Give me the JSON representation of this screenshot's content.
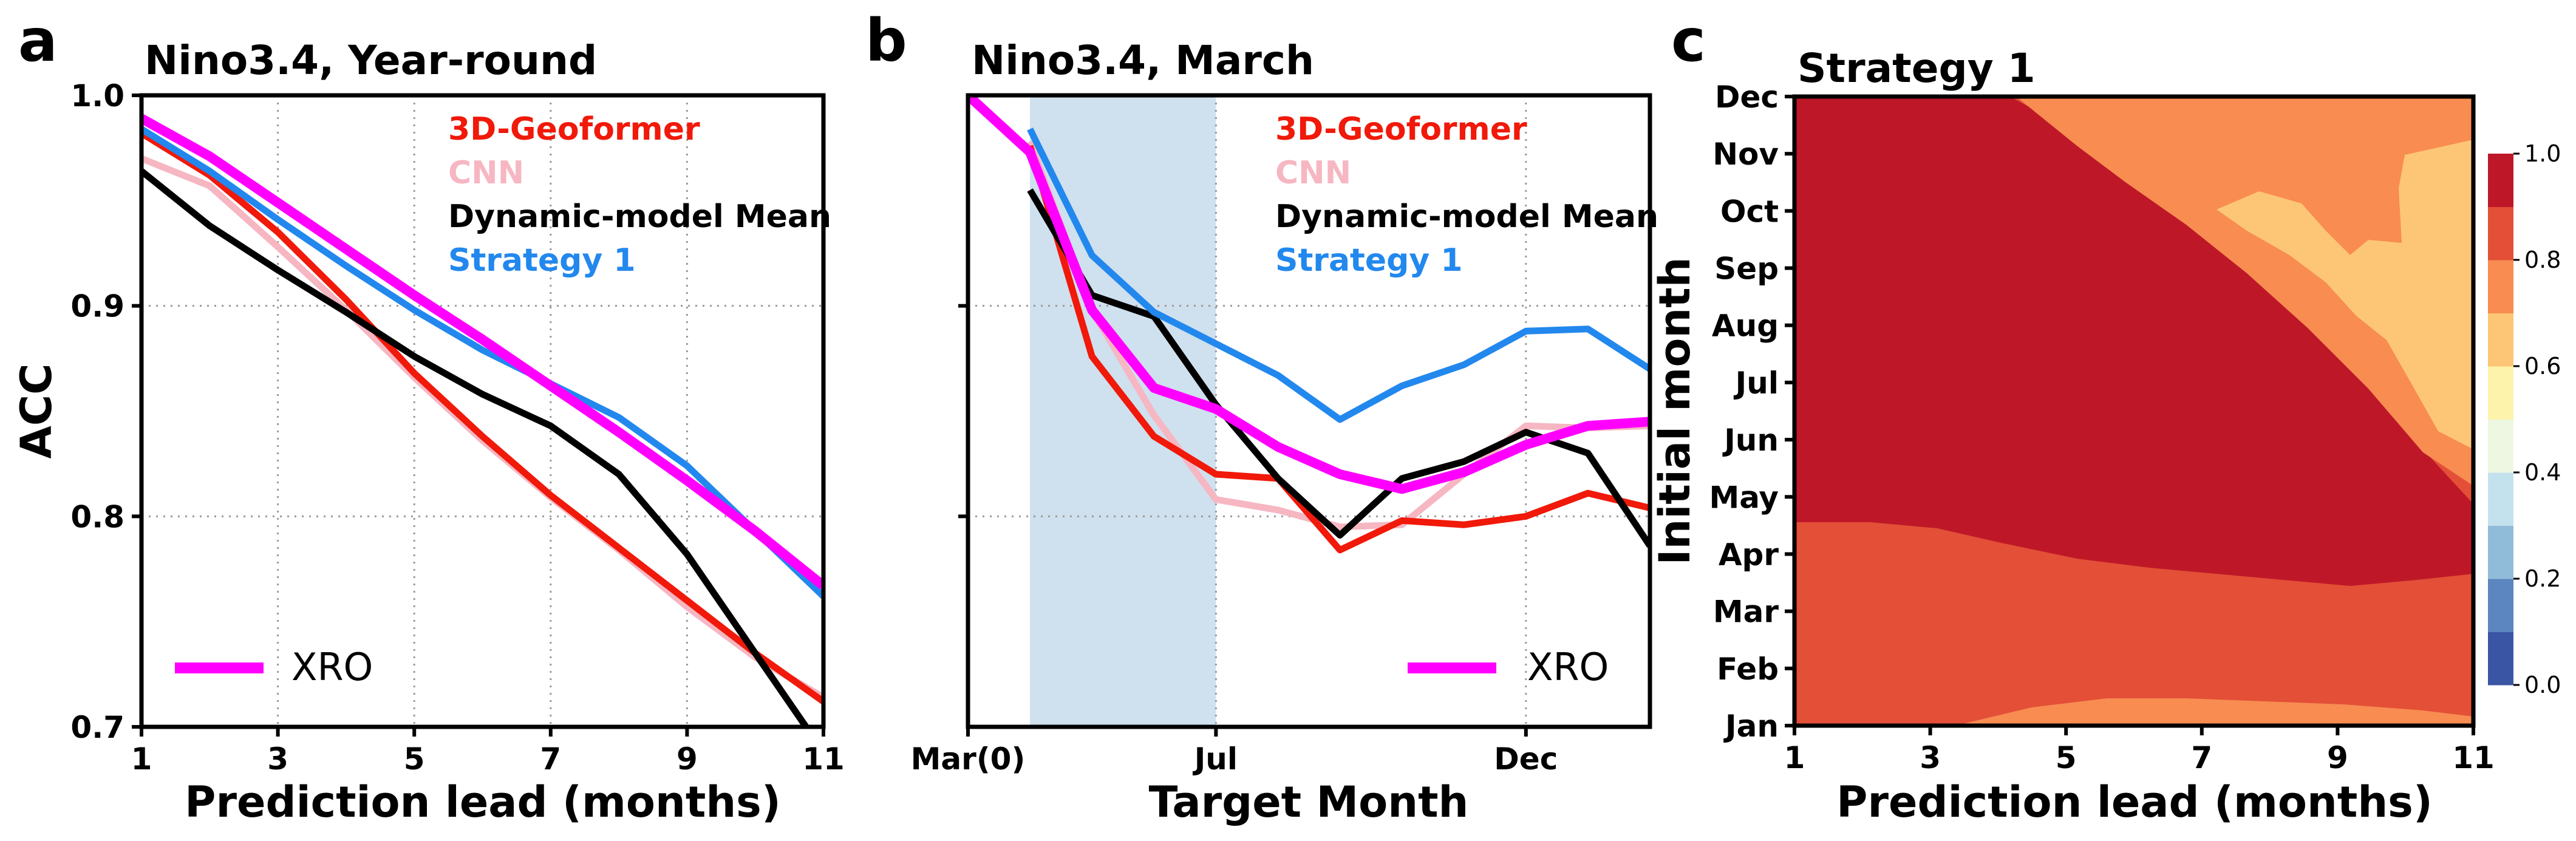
{
  "colors": {
    "geoformer": "#f0190a",
    "cnn": "#f6b6c2",
    "dynamic": "#000000",
    "strategy1": "#2288ee",
    "xro": "#ff00ff",
    "shade": "#cfe0ee"
  },
  "panels": [
    {
      "letter": "a",
      "title": "Nino3.4, Year-round"
    },
    {
      "letter": "b",
      "title": "Nino3.4, March"
    },
    {
      "letter": "c",
      "title": "Strategy 1"
    }
  ],
  "legend": {
    "geoformer": "3D-Geoformer",
    "cnn": "CNN",
    "dynamic": "Dynamic-model Mean",
    "strategy1": "Strategy 1",
    "xro": "XRO"
  },
  "chart_data": [
    {
      "type": "line",
      "title": "Nino3.4, Year-round",
      "xlabel": "Prediction lead (months)",
      "ylabel": "ACC",
      "xlim": [
        1,
        11
      ],
      "ylim": [
        0.7,
        1.0
      ],
      "xticks": [
        "1",
        "3",
        "5",
        "7",
        "9",
        "11"
      ],
      "yticks": [
        "0.7",
        "0.8",
        "0.9",
        "1.0"
      ],
      "grid": true,
      "x": [
        1,
        2,
        3,
        4,
        5,
        6,
        7,
        8,
        9,
        10,
        11
      ],
      "series": [
        {
          "name": "3D-Geoformer",
          "key": "geoformer",
          "values": [
            0.982,
            0.962,
            0.935,
            0.903,
            0.868,
            0.838,
            0.81,
            0.785,
            0.76,
            0.735,
            0.712
          ]
        },
        {
          "name": "CNN",
          "key": "cnn",
          "values": [
            0.97,
            0.957,
            0.928,
            0.898,
            0.866,
            0.836,
            0.809,
            0.784,
            0.757,
            0.733,
            0.714
          ]
        },
        {
          "name": "Dynamic-model Mean",
          "key": "dynamic",
          "values": [
            0.964,
            0.938,
            0.917,
            0.897,
            0.876,
            0.858,
            0.843,
            0.82,
            0.782,
            0.735,
            0.688
          ]
        },
        {
          "name": "Strategy 1",
          "key": "strategy1",
          "values": [
            0.984,
            0.964,
            0.941,
            0.919,
            0.898,
            0.879,
            0.863,
            0.847,
            0.824,
            0.793,
            0.762
          ]
        },
        {
          "name": "XRO",
          "key": "xro",
          "values": [
            0.989,
            0.971,
            0.949,
            0.927,
            0.905,
            0.884,
            0.862,
            0.84,
            0.817,
            0.793,
            0.767
          ]
        }
      ]
    },
    {
      "type": "line",
      "title": "Nino3.4, March",
      "xlabel": "Target Month",
      "xlim": [
        0,
        11
      ],
      "ylim": [
        0.7,
        1.0
      ],
      "xticks": [
        {
          "x": 0,
          "label": "Mar(0)"
        },
        {
          "x": 4,
          "label": "Jul"
        },
        {
          "x": 9,
          "label": "Dec"
        }
      ],
      "shaded_x_range": [
        1,
        4
      ],
      "grid": true,
      "series": [
        {
          "name": "3D-Geoformer",
          "key": "geoformer",
          "x": [
            1,
            2,
            3,
            4,
            5,
            6,
            7,
            8,
            9,
            10,
            11
          ],
          "values": [
            0.976,
            0.876,
            0.838,
            0.82,
            0.818,
            0.784,
            0.798,
            0.796,
            0.8,
            0.811,
            0.804
          ]
        },
        {
          "name": "CNN",
          "key": "cnn",
          "x": [
            1,
            2,
            3,
            4,
            5,
            6,
            7,
            8,
            9,
            10,
            11
          ],
          "values": [
            0.978,
            0.898,
            0.848,
            0.808,
            0.803,
            0.795,
            0.796,
            0.82,
            0.843,
            0.842,
            0.843
          ]
        },
        {
          "name": "Dynamic-model Mean",
          "key": "dynamic",
          "x": [
            1,
            2,
            3,
            4,
            5,
            6,
            7,
            8,
            9,
            10,
            11
          ],
          "values": [
            0.955,
            0.905,
            0.895,
            0.853,
            0.818,
            0.791,
            0.818,
            0.826,
            0.84,
            0.83,
            0.786
          ]
        },
        {
          "name": "Strategy 1",
          "key": "strategy1",
          "x": [
            1,
            2,
            3,
            4,
            5,
            6,
            7,
            8,
            9,
            10,
            11
          ],
          "values": [
            0.984,
            0.924,
            0.897,
            0.882,
            0.867,
            0.846,
            0.862,
            0.872,
            0.888,
            0.889,
            0.87
          ]
        },
        {
          "name": "XRO",
          "key": "xro",
          "x": [
            0,
            1,
            2,
            3,
            4,
            5,
            6,
            7,
            8,
            9,
            10,
            11
          ],
          "values": [
            1.0,
            0.973,
            0.898,
            0.861,
            0.851,
            0.833,
            0.82,
            0.813,
            0.821,
            0.834,
            0.843,
            0.845
          ]
        }
      ]
    },
    {
      "type": "heatmap",
      "title": "Strategy 1",
      "xlabel": "Prediction lead (months)",
      "ylabel": "Initial month",
      "xticks": [
        "1",
        "3",
        "5",
        "7",
        "9",
        "11"
      ],
      "yticks": [
        "Jan",
        "Feb",
        "Mar",
        "Apr",
        "May",
        "Jun",
        "Jul",
        "Aug",
        "Sep",
        "Oct",
        "Nov",
        "Dec"
      ],
      "colorbar": {
        "ticks": [
          "0.0",
          "0.2",
          "0.4",
          "0.6",
          "0.8",
          "1.0"
        ],
        "levels": [
          0.0,
          0.1,
          0.2,
          0.3,
          0.4,
          0.5,
          0.6,
          0.7,
          0.8,
          0.9,
          1.0
        ],
        "colors": [
          "#3b55a5",
          "#5b86bf",
          "#90bcd9",
          "#c4e2ee",
          "#eef7e2",
          "#fdf3aa",
          "#fdc676",
          "#f88c51",
          "#e34f37",
          "#be1828"
        ]
      },
      "regions": [
        {
          "level": "0.9-1.0",
          "color": "#be1828",
          "note": "high skill, large upper-left region"
        },
        {
          "level": "0.8-0.9",
          "color": "#e34f37",
          "note": "lower band for initial months Jan-Apr and diagonal band"
        },
        {
          "level": "0.7-0.8",
          "color": "#f88c51",
          "note": "upper-right and bottom edge"
        },
        {
          "level": "0.6-0.7",
          "color": "#fdc676",
          "note": "upper-right core for initial months Jun-Nov at long leads"
        }
      ]
    }
  ]
}
